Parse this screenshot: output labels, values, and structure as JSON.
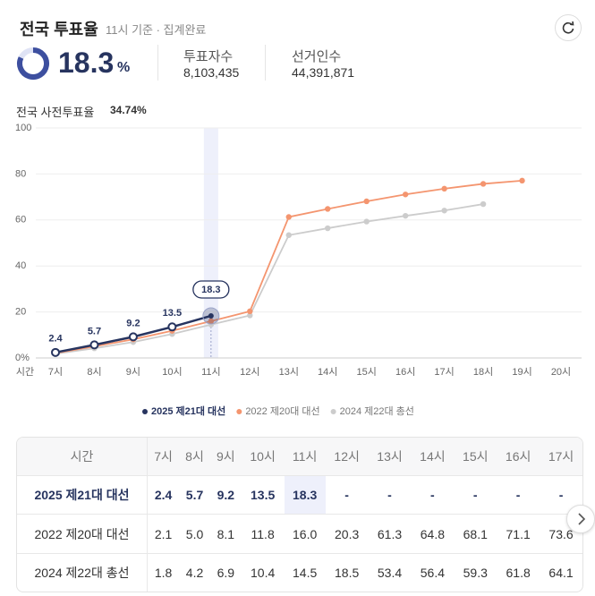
{
  "header": {
    "title": "전국 투표율",
    "subtitle": "11시 기준 · 집계완료"
  },
  "summary": {
    "turnout": "18.3",
    "unit": "%",
    "voters_label": "투표자수",
    "voters": "8,103,435",
    "electors_label": "선거인수",
    "electors": "44,391,871",
    "early_label": "전국 사전투표율",
    "early": "34.74%"
  },
  "chart_data": {
    "type": "line",
    "x_label": "시간",
    "categories": [
      "7시",
      "8시",
      "9시",
      "10시",
      "11시",
      "12시",
      "13시",
      "14시",
      "15시",
      "16시",
      "17시",
      "18시",
      "19시",
      "20시"
    ],
    "series": [
      {
        "name": "2025 제21대 대선",
        "color": "#27345f",
        "values": [
          2.4,
          5.7,
          9.2,
          13.5,
          18.3,
          null,
          null,
          null,
          null,
          null,
          null,
          null,
          null,
          null
        ]
      },
      {
        "name": "2022 제20대 대선",
        "color": "#f4956f",
        "values": [
          2.1,
          5.0,
          8.1,
          11.8,
          16.0,
          20.3,
          61.3,
          64.8,
          68.1,
          71.1,
          73.6,
          75.7,
          77.1,
          null
        ]
      },
      {
        "name": "2024 제22대 총선",
        "color": "#cccccc",
        "values": [
          1.8,
          4.2,
          6.9,
          10.4,
          14.5,
          18.5,
          53.4,
          56.4,
          59.3,
          61.8,
          64.1,
          66.9,
          null,
          null
        ]
      }
    ],
    "ylim": [
      0,
      100
    ],
    "yticks": [
      {
        "value": 0,
        "label": "0%"
      },
      20,
      40,
      60,
      80,
      100
    ],
    "grid": true
  },
  "table": {
    "header": [
      "시간",
      "7시",
      "8시",
      "9시",
      "10시",
      "11시",
      "12시",
      "13시",
      "14시",
      "15시",
      "16시",
      "17시"
    ],
    "rows": [
      [
        "2025 제21대 대선",
        "2.4",
        "5.7",
        "9.2",
        "13.5",
        "18.3",
        "-",
        "-",
        "-",
        "-",
        "-",
        "-"
      ],
      [
        "2022 제20대 대선",
        "2.1",
        "5.0",
        "8.1",
        "11.8",
        "16.0",
        "20.3",
        "61.3",
        "64.8",
        "68.1",
        "71.1",
        "73.6"
      ],
      [
        "2024 제22대 총선",
        "1.8",
        "4.2",
        "6.9",
        "10.4",
        "14.5",
        "18.5",
        "53.4",
        "56.4",
        "59.3",
        "61.8",
        "64.1"
      ]
    ]
  }
}
